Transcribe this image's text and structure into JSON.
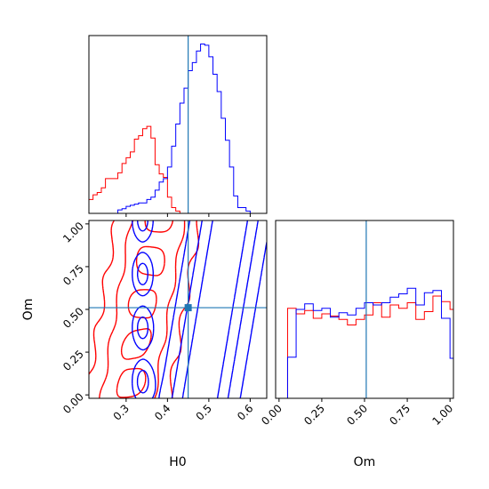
{
  "chart_data": {
    "type": "corner",
    "parameters": [
      "H0",
      "Om"
    ],
    "truth": {
      "H0": 0.45,
      "Om": 0.51
    },
    "colors": {
      "red_series": "#ff0000",
      "blue_series": "#0000ff",
      "truth": "#1f77b4"
    },
    "axes": {
      "H0": {
        "label": "H0",
        "range": [
          0.21,
          0.64
        ],
        "ticks": [
          "0.3",
          "0.4",
          "0.5",
          "0.6"
        ]
      },
      "Om": {
        "label": "Om",
        "range": [
          -0.02,
          1.02
        ],
        "ticks": [
          "0.00",
          "0.25",
          "0.50",
          "0.75",
          "1.00"
        ]
      }
    },
    "panels": [
      {
        "position": "top-left",
        "type": "histogram-step",
        "x_param": "H0",
        "bin_start": 0.21,
        "bin_width": 0.01,
        "series": [
          {
            "color": "red",
            "values": [
              12,
              16,
              18,
              22,
              30,
              30,
              30,
              35,
              43,
              48,
              53,
              64,
              67,
              73,
              75,
              65,
              42,
              34,
              31,
              14,
              5,
              2,
              0,
              0,
              0,
              0,
              0,
              0,
              0,
              0,
              0,
              0,
              0,
              0,
              0,
              0,
              0,
              0,
              0,
              0,
              0,
              0,
              0
            ]
          },
          {
            "color": "blue",
            "values": [
              0,
              0,
              0,
              0,
              0,
              0,
              0,
              3,
              4,
              6,
              7,
              8,
              9,
              9,
              12,
              14,
              20,
              27,
              30,
              40,
              58,
              77,
              95,
              108,
              123,
              130,
              140,
              146,
              145,
              135,
              120,
              105,
              82,
              63,
              40,
              15,
              5,
              5,
              2,
              0,
              0,
              0,
              0
            ]
          }
        ]
      },
      {
        "position": "bottom-right",
        "type": "histogram-step",
        "x_param": "Om",
        "bin_start": 0.0,
        "bin_width": 0.05,
        "series": [
          {
            "color": "red",
            "values": [
              0,
              81,
              76,
              79,
              72,
              76,
              74,
              71,
              66,
              71,
              75,
              86,
              73,
              84,
              81,
              86,
              71,
              78,
              92,
              87,
              80
            ]
          },
          {
            "color": "blue",
            "values": [
              0,
              37,
              80,
              85,
              79,
              81,
              73,
              77,
              75,
              81,
              86,
              84,
              86,
              91,
              94,
              99,
              84,
              95,
              97,
              72,
              36
            ]
          }
        ]
      },
      {
        "position": "bottom-left",
        "type": "contour",
        "x_param": "H0",
        "y_param": "Om",
        "series": [
          {
            "color": "red",
            "levels": [
              0.15,
              0.4,
              0.7
            ]
          },
          {
            "color": "blue",
            "levels": [
              0.15,
              0.4,
              0.7
            ]
          }
        ]
      }
    ]
  }
}
